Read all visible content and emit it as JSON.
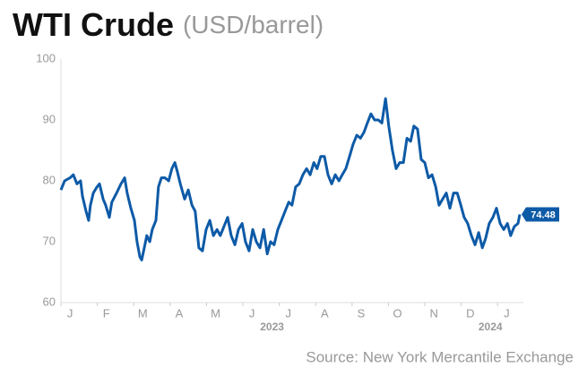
{
  "chart_data": {
    "type": "line",
    "title": "WTI Crude",
    "subtitle": "(USD/barrel)",
    "source": "Source: New York Mercantile Exchange",
    "x": [
      0,
      0.1,
      0.25,
      0.34,
      0.44,
      0.54,
      0.59,
      0.69,
      0.76,
      0.81,
      0.89,
      0.99,
      1.06,
      1.16,
      1.23,
      1.33,
      1.4,
      1.53,
      1.65,
      1.75,
      1.82,
      1.92,
      2.02,
      2.09,
      2.17,
      2.22,
      2.29,
      2.36,
      2.44,
      2.51,
      2.61,
      2.68,
      2.76,
      2.86,
      2.96,
      3.05,
      3.13,
      3.2,
      3.28,
      3.4,
      3.5,
      3.6,
      3.69,
      3.79,
      3.89,
      3.99,
      4.09,
      4.19,
      4.29,
      4.38,
      4.48,
      4.58,
      4.68,
      4.78,
      4.88,
      4.98,
      5.07,
      5.17,
      5.27,
      5.37,
      5.47,
      5.57,
      5.67,
      5.76,
      5.86,
      5.96,
      6.06,
      6.16,
      6.26,
      6.35,
      6.45,
      6.55,
      6.65,
      6.75,
      6.85,
      6.95,
      7.04,
      7.14,
      7.24,
      7.34,
      7.44,
      7.54,
      7.64,
      7.73,
      7.83,
      7.93,
      8.03,
      8.13,
      8.23,
      8.33,
      8.42,
      8.52,
      8.62,
      8.72,
      8.82,
      8.92,
      9.01,
      9.11,
      9.21,
      9.31,
      9.41,
      9.51,
      9.61,
      9.7,
      9.8,
      9.9,
      10.0,
      10.1,
      10.2,
      10.3,
      10.39,
      10.49,
      10.59,
      10.69,
      10.79,
      10.89,
      10.99,
      11.08,
      11.18,
      11.28,
      11.38,
      11.48,
      11.58,
      11.67,
      11.77,
      11.87,
      11.97,
      12.07,
      12.17,
      12.27,
      12.36,
      12.46,
      12.56,
      12.61
    ],
    "series": [
      {
        "color": "#0d5aa7",
        "values": [
          78.5,
          80,
          80.5,
          81,
          79.5,
          80,
          77.5,
          75,
          73.5,
          76,
          78,
          79,
          79.5,
          77,
          76,
          74,
          76.5,
          78,
          79.5,
          80.5,
          78,
          75.5,
          73.5,
          70,
          67.5,
          67,
          69,
          71,
          70,
          72,
          73.5,
          79,
          80.5,
          80.5,
          80,
          82,
          83,
          81.5,
          79.5,
          77,
          78.5,
          76,
          75,
          69,
          68.5,
          72,
          73.5,
          71,
          72,
          71,
          72.5,
          74,
          71,
          69.5,
          72,
          73,
          70,
          68.5,
          72,
          70,
          69,
          72,
          68,
          70,
          69.5,
          72,
          73.5,
          75,
          76.5,
          76,
          79,
          79.5,
          81,
          82,
          81,
          83,
          82,
          84,
          84,
          81,
          79.5,
          81,
          80,
          81,
          82,
          84,
          86,
          87.5,
          87,
          88,
          89.5,
          91,
          90,
          90,
          89.5,
          93.5,
          89,
          85,
          82,
          83,
          83,
          87,
          86.5,
          89,
          88.5,
          83.5,
          83,
          80.5,
          81,
          79,
          76,
          77,
          78,
          75.5,
          78,
          78,
          76,
          74,
          73,
          71,
          69.5,
          71.5,
          69,
          70.5,
          73,
          74,
          75.5,
          73,
          72,
          73,
          71,
          72.5,
          73,
          74.48
        ]
      }
    ],
    "xlim": [
      0,
      12.61
    ],
    "xticks": [
      {
        "value": 0,
        "label": "J"
      },
      {
        "value": 1,
        "label": "F"
      },
      {
        "value": 2,
        "label": "M"
      },
      {
        "value": 3,
        "label": "A"
      },
      {
        "value": 4,
        "label": "M"
      },
      {
        "value": 5,
        "label": "J"
      },
      {
        "value": 6,
        "label": "J"
      },
      {
        "value": 7,
        "label": "A"
      },
      {
        "value": 8,
        "label": "S"
      },
      {
        "value": 9,
        "label": "O"
      },
      {
        "value": 10,
        "label": "N"
      },
      {
        "value": 11,
        "label": "D"
      },
      {
        "value": 12,
        "label": "J"
      }
    ],
    "year_ticks": [
      {
        "value": 6,
        "label": "2023"
      },
      {
        "value": 12,
        "label": "2024"
      }
    ],
    "ylim": [
      60,
      100
    ],
    "yticks": [
      60,
      70,
      80,
      90,
      100
    ],
    "grid": false
  }
}
